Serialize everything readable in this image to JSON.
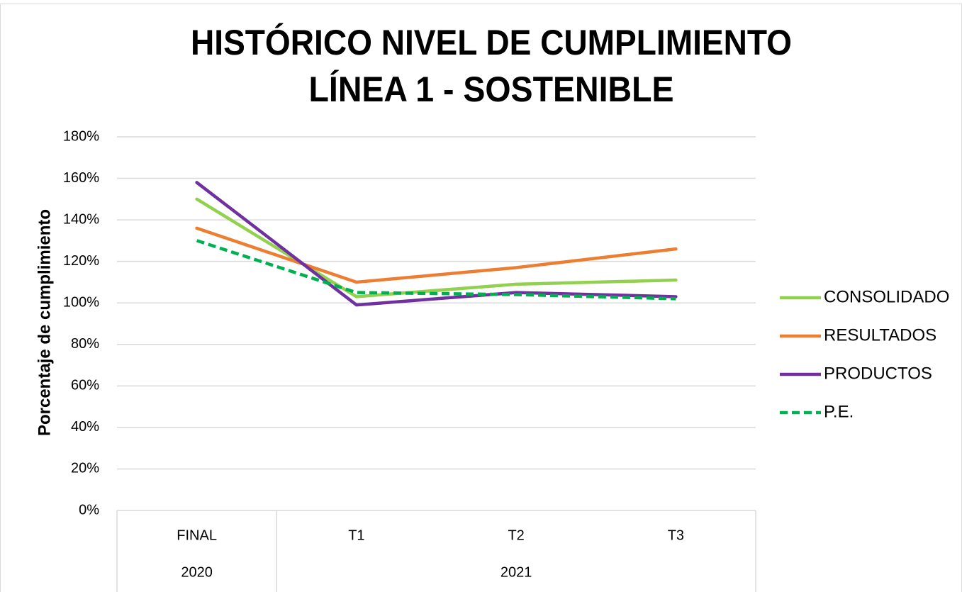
{
  "chart_data": {
    "type": "line",
    "title": [
      "HISTÓRICO NIVEL DE CUMPLIMIENTO",
      "LÍNEA 1 - SOSTENIBLE"
    ],
    "y_label": "Porcentaje de cumplimiento",
    "categories": [
      "FINAL",
      "T1",
      "T2",
      "T3"
    ],
    "category_groups": [
      "2020",
      "2021",
      "2021",
      "2021"
    ],
    "series": [
      {
        "name": "CONSOLIDADO",
        "color": "#92d050",
        "dash": false,
        "values": [
          150,
          103,
          109,
          111
        ]
      },
      {
        "name": "RESULTADOS",
        "color": "#ed7d31",
        "dash": false,
        "values": [
          136,
          110,
          117,
          126
        ]
      },
      {
        "name": "PRODUCTOS",
        "color": "#7030a0",
        "dash": false,
        "values": [
          158,
          99,
          105,
          103
        ]
      },
      {
        "name": "P.E.",
        "color": "#00b050",
        "dash": true,
        "values": [
          130,
          105,
          104,
          102
        ]
      }
    ],
    "ylim": [
      0,
      180
    ],
    "yticks": [
      {
        "value": 0,
        "label": "0%"
      },
      {
        "value": 20,
        "label": "20%"
      },
      {
        "value": 40,
        "label": "40%"
      },
      {
        "value": 60,
        "label": "60%"
      },
      {
        "value": 80,
        "label": "80%"
      },
      {
        "value": 100,
        "label": "100%"
      },
      {
        "value": 120,
        "label": "120%"
      },
      {
        "value": 140,
        "label": "140%"
      },
      {
        "value": 160,
        "label": "160%"
      },
      {
        "value": 180,
        "label": "180%"
      }
    ],
    "grid": true,
    "legend": "right"
  }
}
